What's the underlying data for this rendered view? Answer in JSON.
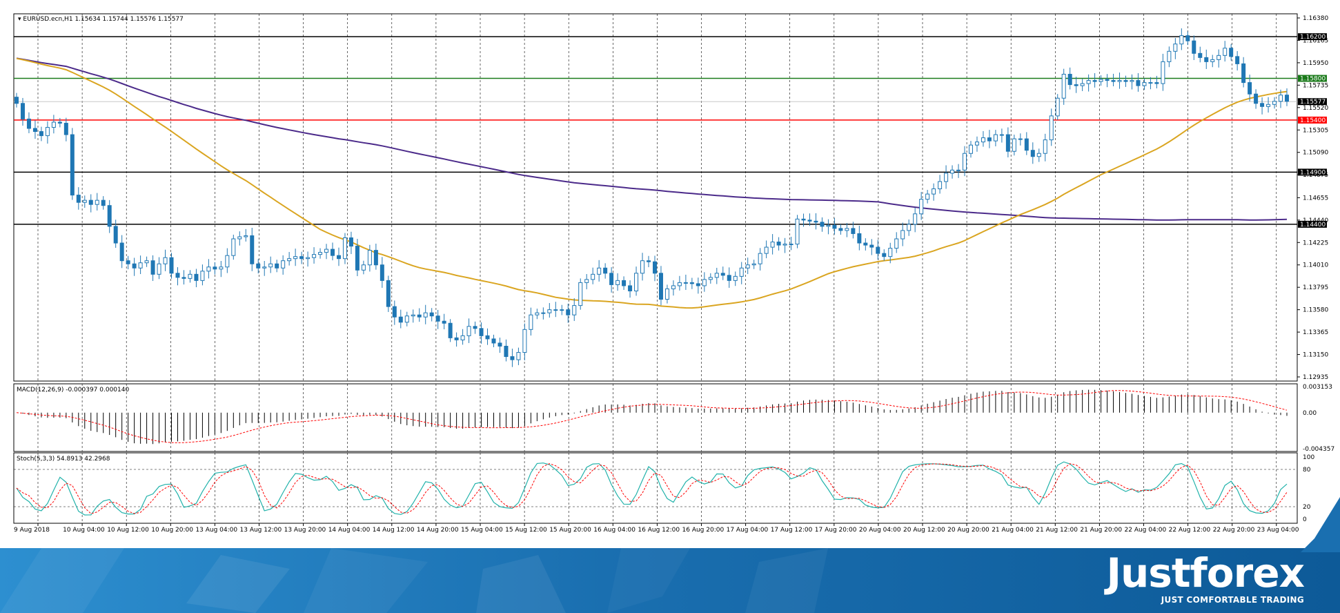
{
  "chart_data": [
    {
      "type": "candlestick",
      "symbol_label": "EURUSD.ecn,H1",
      "ohlc_header": "1.15634 1.15744 1.15576 1.15577",
      "ylim": [
        1.12935,
        1.1638
      ],
      "y_ticks": [
        "1.16380",
        "1.16165",
        "1.15950",
        "1.15735",
        "1.15520",
        "1.15305",
        "1.15090",
        "1.14875",
        "1.14655",
        "1.14440",
        "1.14225",
        "1.14010",
        "1.13795",
        "1.13580",
        "1.13365",
        "1.13150",
        "1.12935"
      ],
      "x_ticks": [
        "9 Aug 2018",
        "10 Aug 04:00",
        "10 Aug 12:00",
        "10 Aug 20:00",
        "13 Aug 04:00",
        "13 Aug 12:00",
        "13 Aug 20:00",
        "14 Aug 04:00",
        "14 Aug 12:00",
        "14 Aug 20:00",
        "15 Aug 04:00",
        "15 Aug 12:00",
        "15 Aug 20:00",
        "16 Aug 04:00",
        "16 Aug 12:00",
        "16 Aug 20:00",
        "17 Aug 04:00",
        "17 Aug 12:00",
        "17 Aug 20:00",
        "20 Aug 04:00",
        "20 Aug 12:00",
        "20 Aug 20:00",
        "21 Aug 04:00",
        "21 Aug 12:00",
        "21 Aug 20:00",
        "22 Aug 04:00",
        "22 Aug 12:00",
        "22 Aug 20:00",
        "23 Aug 04:00"
      ],
      "horizontal_levels": [
        {
          "value": 1.162,
          "label": "1.16200",
          "color": "#000000"
        },
        {
          "value": 1.158,
          "label": "1.15800",
          "color": "#1a7a1a"
        },
        {
          "value": 1.154,
          "label": "1.15400",
          "color": "#ff0000"
        },
        {
          "value": 1.149,
          "label": "1.14900",
          "color": "#000000"
        },
        {
          "value": 1.144,
          "label": "1.14400",
          "color": "#000000"
        }
      ],
      "current_price": {
        "value": 1.15577,
        "label": "1.15577"
      },
      "candle_color": "#1f77b4",
      "candles_close": [
        1.1556,
        1.1541,
        1.1532,
        1.1529,
        1.1525,
        1.1533,
        1.1538,
        1.1537,
        1.1526,
        1.1468,
        1.1461,
        1.1463,
        1.1459,
        1.1463,
        1.1458,
        1.1438,
        1.1422,
        1.1405,
        1.1402,
        1.1398,
        1.1403,
        1.1405,
        1.1392,
        1.1402,
        1.1408,
        1.1393,
        1.1389,
        1.1388,
        1.1392,
        1.1386,
        1.1395,
        1.1399,
        1.1397,
        1.1399,
        1.141,
        1.1426,
        1.1428,
        1.1429,
        1.1402,
        1.1398,
        1.1399,
        1.1402,
        1.1398,
        1.1405,
        1.1407,
        1.1409,
        1.1407,
        1.1408,
        1.1411,
        1.1413,
        1.1416,
        1.141,
        1.1407,
        1.1427,
        1.1419,
        1.1396,
        1.1401,
        1.1415,
        1.1401,
        1.1386,
        1.1361,
        1.1351,
        1.1346,
        1.1352,
        1.1353,
        1.1351,
        1.1355,
        1.1352,
        1.1347,
        1.1345,
        1.1331,
        1.1329,
        1.1333,
        1.1342,
        1.134,
        1.1333,
        1.133,
        1.1326,
        1.1323,
        1.1313,
        1.131,
        1.1317,
        1.1339,
        1.1353,
        1.1355,
        1.1355,
        1.1358,
        1.1358,
        1.1358,
        1.1353,
        1.1362,
        1.1384,
        1.1387,
        1.1392,
        1.1398,
        1.1393,
        1.1382,
        1.1386,
        1.1381,
        1.1376,
        1.1393,
        1.1405,
        1.1404,
        1.1393,
        1.1368,
        1.1378,
        1.1381,
        1.1384,
        1.1384,
        1.1383,
        1.1381,
        1.1387,
        1.1389,
        1.1393,
        1.1391,
        1.1386,
        1.139,
        1.1398,
        1.1401,
        1.1402,
        1.1412,
        1.1418,
        1.1423,
        1.142,
        1.1421,
        1.1421,
        1.1445,
        1.1444,
        1.1443,
        1.1442,
        1.1438,
        1.1439,
        1.1436,
        1.1434,
        1.1436,
        1.1431,
        1.1422,
        1.142,
        1.1418,
        1.1412,
        1.1409,
        1.1417,
        1.1426,
        1.1434,
        1.144,
        1.145,
        1.1464,
        1.1469,
        1.1474,
        1.1481,
        1.1489,
        1.1492,
        1.1492,
        1.1508,
        1.1516,
        1.1519,
        1.1523,
        1.152,
        1.1526,
        1.1526,
        1.151,
        1.1522,
        1.1522,
        1.1511,
        1.1505,
        1.1508,
        1.1521,
        1.1544,
        1.1561,
        1.1584,
        1.1574,
        1.1573,
        1.1575,
        1.1578,
        1.1577,
        1.1579,
        1.1578,
        1.1577,
        1.1578,
        1.1577,
        1.1578,
        1.1573,
        1.1576,
        1.1576,
        1.1575,
        1.1596,
        1.1606,
        1.1613,
        1.1621,
        1.1616,
        1.1604,
        1.16,
        1.1596,
        1.1598,
        1.1602,
        1.1609,
        1.1601,
        1.1594,
        1.1576,
        1.1565,
        1.1556,
        1.1553,
        1.1555,
        1.1558,
        1.1564,
        1.1558
      ],
      "ma_fast_color": "#daa520",
      "ma_slow_color": "#4b2a8a"
    },
    {
      "type": "histogram",
      "label": "MACD(12,26,9) -0.000397 0.000140",
      "y_ticks": [
        "0.003153",
        "0.00",
        "-0.004357"
      ],
      "signal_color": "#ff0000"
    },
    {
      "type": "line",
      "label": "Stoch(5,3,3) 54.8913 42.2968",
      "y_ticks": [
        "100",
        "80",
        "20",
        "0"
      ],
      "main_color": "#20b2aa",
      "signal_color": "#ff0000"
    }
  ],
  "brand": {
    "name": "Justforex",
    "tagline": "JUST COMFORTABLE TRADING"
  }
}
